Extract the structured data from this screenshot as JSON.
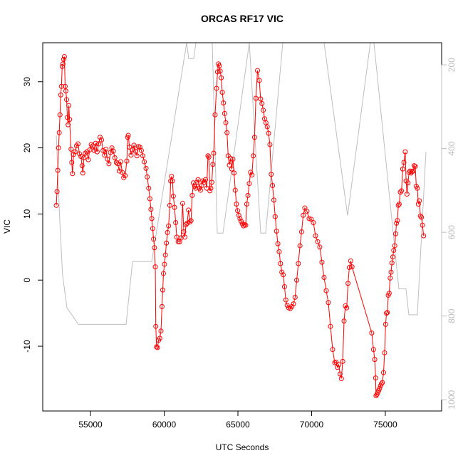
{
  "chart_data": {
    "type": "line",
    "title": "ORCAS RF17 VIC",
    "x_label": "UTC Seconds",
    "y_label": "VIC",
    "xlim": [
      51760,
      78820
    ],
    "ylim": [
      -19.8,
      35.9
    ],
    "y2lim": [
      1027,
      147
    ],
    "xticks": [
      55000,
      60000,
      65000,
      70000,
      75000
    ],
    "yticks": [
      -10,
      0,
      10,
      20,
      30
    ],
    "y2ticks": [
      200,
      400,
      600,
      800,
      1000
    ],
    "series": [
      {
        "name": "VIC",
        "color": "#ff0000",
        "marker": "circle",
        "x": [
          52681,
          52730,
          52780,
          52830,
          52880,
          52930,
          52980,
          53030,
          53080,
          53130,
          53180,
          53230,
          53280,
          53330,
          53380,
          53430,
          53480,
          53530,
          53580,
          53680,
          53730,
          53780,
          53850,
          53950,
          54050,
          54150,
          54250,
          54350,
          54430,
          54480,
          54550,
          54650,
          54750,
          54850,
          54950,
          55050,
          55150,
          55250,
          55350,
          55450,
          55550,
          55650,
          55750,
          55850,
          55950,
          56050,
          56150,
          56250,
          56350,
          56450,
          56550,
          56650,
          56750,
          56850,
          56950,
          57050,
          57150,
          57250,
          57350,
          57464,
          57520,
          57560,
          57650,
          57750,
          57850,
          57950,
          58050,
          58150,
          58250,
          58350,
          58450,
          58550,
          58650,
          58768,
          58850,
          58950,
          59030,
          59100,
          59160,
          59220,
          59280,
          59340,
          59396,
          59430,
          59480,
          59540,
          59620,
          59700,
          59780,
          59850,
          59900,
          59950,
          60020,
          60080,
          60150,
          60220,
          60300,
          60380,
          60440,
          60500,
          60560,
          60620,
          60700,
          60780,
          60850,
          60950,
          61050,
          61150,
          61250,
          61329,
          61400,
          61480,
          61560,
          61650,
          61740,
          61820,
          61900,
          61980,
          62060,
          62140,
          62220,
          62300,
          62380,
          62460,
          62540,
          62620,
          62700,
          62800,
          62880,
          62970,
          63030,
          63100,
          63160,
          63230,
          63300,
          63357,
          63450,
          63550,
          63620,
          63680,
          63740,
          63800,
          63870,
          63940,
          64020,
          64100,
          64180,
          64260,
          64340,
          64420,
          64500,
          64580,
          64660,
          64740,
          64820,
          64900,
          64980,
          65060,
          65140,
          65220,
          65300,
          65380,
          65460,
          65530,
          65600,
          65680,
          65770,
          65860,
          65950,
          66040,
          66130,
          66220,
          66330,
          66450,
          66540,
          66630,
          66720,
          66810,
          66900,
          66990,
          67080,
          67170,
          67260,
          67350,
          67440,
          67530,
          67620,
          67710,
          67800,
          67890,
          67980,
          68070,
          68160,
          68250,
          68340,
          68440,
          68550,
          68660,
          68770,
          68880,
          68990,
          69100,
          69210,
          69320,
          69430,
          69540,
          69685,
          69830,
          69975,
          70120,
          70265,
          70410,
          70555,
          70700,
          70845,
          70990,
          71135,
          71280,
          71425,
          71570,
          71660,
          71750,
          71840,
          71930,
          72020,
          72110,
          72200,
          72290,
          72380,
          72470,
          72560,
          72650,
          72740,
          74080,
          74200,
          74280,
          74340,
          74370,
          74430,
          74490,
          74550,
          74610,
          74670,
          74730,
          74800,
          74880,
          74950,
          75020,
          75080,
          75140,
          75200,
          75260,
          75330,
          75390,
          75450,
          75510,
          75570,
          75640,
          75700,
          75760,
          75820,
          75880,
          75940,
          76020,
          76100,
          76180,
          76260,
          76350,
          76410,
          76470,
          76540,
          76610,
          76680,
          76750,
          76820,
          76890,
          76960,
          77030,
          77100,
          77170,
          77240,
          77310,
          77380,
          77450,
          77520,
          77600
        ],
        "values": [
          11.3,
          13.4,
          16.6,
          20,
          22.3,
          25,
          28,
          29.3,
          32.3,
          32.7,
          33.4,
          33.8,
          29.3,
          28.6,
          27.3,
          24.6,
          23.5,
          26.4,
          24.3,
          19.8,
          17.8,
          16.1,
          19,
          19.4,
          20.3,
          20.6,
          19.1,
          18.7,
          17.3,
          16.2,
          18.5,
          19.2,
          19.4,
          18.2,
          19.7,
          20.5,
          20.3,
          19.6,
          20.7,
          19.4,
          20.6,
          21.6,
          21.2,
          19.6,
          18.9,
          19.8,
          18.3,
          17.6,
          19.3,
          20,
          19.5,
          18.5,
          17.8,
          17.6,
          16.5,
          17.9,
          16.3,
          15.5,
          15.8,
          18,
          21.6,
          21.9,
          20.1,
          18.9,
          19.7,
          20.4,
          19.5,
          18.8,
          20.2,
          20.1,
          19.6,
          18.8,
          17.9,
          16.9,
          15.6,
          13.9,
          12.3,
          10.7,
          9.3,
          7.8,
          6.2,
          4.9,
          2,
          -7,
          -10.1,
          -10.2,
          -9.1,
          -8.8,
          -7.7,
          -4,
          -1.5,
          1,
          2.4,
          3.8,
          5.6,
          7.2,
          8.2,
          11.3,
          15,
          15.7,
          15,
          12.7,
          11,
          8.7,
          6.5,
          5.8,
          5.8,
          6.4,
          11.6,
          7.3,
          6.5,
          8.4,
          8.6,
          10.6,
          8.8,
          9,
          12.8,
          14.7,
          14.2,
          13.9,
          14.8,
          15.2,
          13.9,
          13.6,
          14.3,
          15,
          14.8,
          15.2,
          13.9,
          18.8,
          18.6,
          13.5,
          13.9,
          14.8,
          17.5,
          19.2,
          25,
          29,
          31.5,
          32.7,
          32.4,
          31.6,
          30.6,
          28.4,
          26.8,
          25.2,
          23.8,
          22.3,
          18.8,
          17.4,
          18.4,
          16.8,
          18.3,
          16.2,
          13.6,
          11.5,
          10.5,
          9.8,
          9.3,
          8.9,
          8.5,
          8.2,
          8.4,
          8.3,
          11.5,
          12.8,
          14.6,
          16.3,
          15.9,
          18.8,
          21.6,
          27.5,
          31.7,
          30.2,
          27.4,
          26.7,
          25.7,
          24.4,
          23.8,
          23.2,
          22.2,
          20.5,
          16,
          14.3,
          12.1,
          9.6,
          7.4,
          5.5,
          4.3,
          2.5,
          1.2,
          0.8,
          -1,
          -3,
          -3.8,
          -4.2,
          -4.3,
          -4,
          -3.6,
          -2.6,
          0,
          2.5,
          5.2,
          7.3,
          9.8,
          10.9,
          10.4,
          9.3,
          9.2,
          8.7,
          6.7,
          5.8,
          5,
          2.7,
          0.4,
          -1.6,
          -3.4,
          -7,
          -10.5,
          -12.5,
          -12.4,
          -13.2,
          -12.8,
          -14.2,
          -14.9,
          -12.3,
          -6.2,
          -3.9,
          -4.2,
          -0.5,
          1.9,
          2.9,
          2,
          -8,
          -10.5,
          -12,
          -14.8,
          -17.5,
          -17.3,
          -17,
          -16.7,
          -16.4,
          -16,
          -15.7,
          -15.5,
          -14,
          -11,
          -6.7,
          -5,
          -4.9,
          -2.3,
          -2,
          0.3,
          1.2,
          2.6,
          3.5,
          4.5,
          5.2,
          7,
          8.6,
          9,
          11.3,
          11.5,
          13.3,
          13.5,
          16.8,
          17.8,
          19.4,
          15,
          13,
          14.7,
          16.3,
          16.5,
          16.2,
          16.4,
          16.5,
          17.3,
          17.2,
          14.2,
          13.9,
          11.5,
          12,
          9.7,
          9.5,
          8.3,
          6.7
        ]
      },
      {
        "color": "#bebebe",
        "axis": "y2",
        "x": [
          52681,
          52900,
          53100,
          53400,
          54179,
          57415,
          57850,
          59155,
          61522,
          61667,
          62005,
          62150,
          63261,
          63599,
          63986,
          65773,
          66546,
          66884,
          68043,
          70846,
          72440,
          73986,
          74227,
          75918,
          76401,
          76594,
          77174,
          77754
        ],
        "values": [
          368,
          560,
          700,
          780,
          820,
          820,
          670,
          670,
          147,
          185,
          185,
          147,
          147,
          602,
          602,
          147,
          602,
          602,
          147,
          147,
          560,
          147,
          147,
          735,
          735,
          797,
          797,
          408
        ]
      }
    ]
  }
}
